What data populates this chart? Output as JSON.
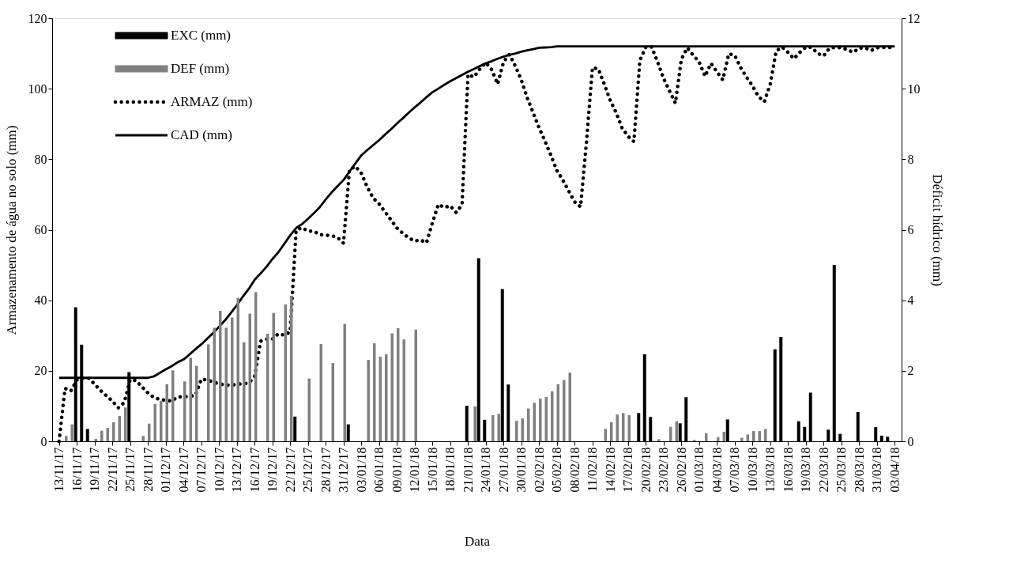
{
  "chart_data": {
    "type": "bar",
    "xlabel": "Data",
    "ylabel": "Armazenamento de água no solo (mm)",
    "y2label": "Déficit hídrico (mm)",
    "categories": [
      "13/11/17",
      null,
      null,
      "16/11/17",
      null,
      null,
      "19/11/17",
      null,
      null,
      "22/11/17",
      null,
      null,
      "25/11/17",
      null,
      null,
      "28/11/17",
      null,
      null,
      "01/12/17",
      null,
      null,
      "04/12/17",
      null,
      null,
      "07/12/17",
      null,
      null,
      "10/12/17",
      null,
      null,
      "13/12/17",
      null,
      null,
      "16/12/17",
      null,
      null,
      "19/12/17",
      null,
      null,
      "22/12/17",
      null,
      null,
      "25/12/17",
      null,
      null,
      "28/12/17",
      null,
      null,
      "31/12/17",
      null,
      null,
      "03/01/18",
      null,
      null,
      "06/01/18",
      null,
      null,
      "09/01/18",
      null,
      null,
      "12/01/18",
      null,
      null,
      "15/01/18",
      null,
      null,
      "18/01/18",
      null,
      null,
      "21/01/18",
      null,
      null,
      "24/01/18",
      null,
      null,
      "27/01/18",
      null,
      null,
      "30/01/18",
      null,
      null,
      "02/02/18",
      null,
      null,
      "05/02/18",
      null,
      null,
      "08/02/18",
      null,
      null,
      "11/02/18",
      null,
      null,
      "14/02/18",
      null,
      null,
      "17/02/18",
      null,
      null,
      "20/02/18",
      null,
      null,
      "23/02/18",
      null,
      null,
      "26/02/18",
      null,
      null,
      "01/03/18",
      null,
      null,
      "04/03/18",
      null,
      null,
      "07/03/18",
      null,
      null,
      "10/03/18",
      null,
      null,
      "13/03/18",
      null,
      null,
      "16/03/18",
      null,
      null,
      "19/03/18",
      null,
      null,
      "22/03/18",
      null,
      null,
      "25/03/18",
      null,
      null,
      "28/03/18",
      null,
      null,
      "31/03/18",
      null,
      null,
      "03/04/18"
    ],
    "ylim": [
      0,
      120
    ],
    "yticks": [
      0,
      20,
      40,
      60,
      80,
      100,
      120
    ],
    "y2lim": [
      0,
      12
    ],
    "y2ticks": [
      0,
      2,
      4,
      6,
      8,
      10,
      12
    ],
    "grid": false,
    "legend": "top left",
    "series": [
      {
        "name": "EXC (mm)",
        "color": "#000000",
        "values": [
          null,
          null,
          null,
          38.0,
          27.4,
          3.5,
          null,
          null,
          null,
          null,
          null,
          null,
          19.6,
          null,
          null,
          null,
          null,
          null,
          null,
          null,
          null,
          null,
          null,
          null,
          null,
          null,
          null,
          null,
          null,
          null,
          null,
          null,
          null,
          null,
          null,
          null,
          null,
          null,
          null,
          null,
          7.0,
          null,
          null,
          null,
          null,
          null,
          null,
          null,
          null,
          4.8,
          null,
          null,
          null,
          null,
          null,
          null,
          null,
          null,
          null,
          null,
          null,
          null,
          null,
          null,
          null,
          null,
          null,
          null,
          null,
          10.1,
          null,
          51.9,
          6.1,
          null,
          null,
          43.2,
          16.1,
          null,
          null,
          null,
          null,
          null,
          null,
          null,
          null,
          null,
          null,
          null,
          null,
          null,
          null,
          null,
          null,
          null,
          null,
          null,
          null,
          null,
          8.0,
          24.7,
          6.9,
          null,
          null,
          null,
          null,
          5.1,
          12.5,
          null,
          null,
          null,
          null,
          null,
          null,
          6.2,
          null,
          null,
          null,
          null,
          null,
          null,
          null,
          26.1,
          29.6,
          null,
          null,
          5.7,
          4.1,
          13.8,
          null,
          null,
          3.3,
          50.0,
          2.1,
          null,
          null,
          8.3,
          null,
          null,
          4.0,
          1.6,
          1.3,
          null
        ]
      },
      {
        "name": "DEF (mm)",
        "axis": "y2",
        "color": "#808080",
        "values": [
          null,
          0.15,
          0.48,
          null,
          null,
          null,
          0.07,
          0.3,
          0.38,
          0.54,
          0.72,
          0.96,
          null,
          null,
          0.15,
          0.5,
          1.06,
          1.15,
          1.62,
          2.01,
          null,
          1.7,
          2.37,
          2.14,
          null,
          2.75,
          3.22,
          3.7,
          3.22,
          3.51,
          4.07,
          2.81,
          3.62,
          4.23,
          null,
          3.05,
          3.64,
          null,
          3.88,
          4.13,
          null,
          null,
          1.78,
          null,
          2.76,
          null,
          2.22,
          null,
          3.33,
          null,
          null,
          null,
          2.31,
          2.78,
          2.4,
          2.47,
          3.06,
          3.21,
          2.89,
          null,
          3.17,
          null,
          null,
          null,
          null,
          null,
          null,
          null,
          null,
          null,
          0.99,
          null,
          null,
          0.74,
          0.78,
          null,
          null,
          0.58,
          0.65,
          0.93,
          1.09,
          1.21,
          1.26,
          1.42,
          1.62,
          1.74,
          1.95,
          null,
          null,
          null,
          null,
          null,
          0.35,
          0.54,
          0.76,
          0.8,
          0.74,
          null,
          null,
          null,
          null,
          0.06,
          null,
          0.41,
          0.57,
          null,
          null,
          0.04,
          null,
          0.23,
          null,
          0.12,
          0.27,
          null,
          null,
          0.1,
          0.19,
          0.29,
          0.29,
          0.35,
          null,
          null,
          null,
          null,
          null,
          null,
          null,
          null,
          null,
          null,
          null,
          null,
          null,
          null,
          null,
          null,
          null,
          null,
          null,
          null,
          null,
          null
        ]
      },
      {
        "name": "ARMAZ (mm)",
        "type": "line",
        "line_style": "dotted",
        "color": "#000000",
        "values": [
          0,
          15.0,
          14.3,
          17.4,
          17.9,
          17.9,
          16.2,
          14.4,
          12.9,
          11.4,
          9.5,
          11.0,
          17.5,
          17.2,
          15.4,
          13.7,
          12.4,
          11.9,
          11.6,
          11.4,
          12.6,
          12.6,
          12.8,
          13.0,
          17.6,
          17.4,
          16.8,
          16.3,
          16.0,
          15.9,
          16.2,
          16.3,
          16.5,
          18.4,
          28.4,
          29.0,
          29.0,
          30.5,
          30.1,
          31.0,
          59.8,
          60.6,
          59.6,
          59.6,
          58.6,
          58.5,
          58.3,
          57.8,
          56.2,
          77.0,
          78.0,
          76.0,
          72.1,
          69.0,
          67.3,
          65.1,
          62.8,
          60.5,
          59.0,
          57.7,
          56.8,
          57.1,
          56.3,
          62.0,
          67.2,
          66.3,
          66.8,
          64.9,
          67.1,
          104.0,
          103.3,
          105.6,
          107.4,
          105.4,
          101.3,
          107.6,
          109.7,
          106.4,
          102.5,
          97.4,
          93.2,
          88.9,
          85.1,
          81.1,
          76.8,
          74.1,
          71.0,
          67.9,
          66.5,
          85.0,
          106.0,
          105.6,
          101.3,
          96.7,
          93.2,
          88.9,
          86.5,
          85.0,
          108.0,
          111.8,
          111.8,
          107.6,
          102.9,
          99.4,
          95.9,
          108.3,
          111.6,
          109.5,
          107.6,
          103.5,
          107.2,
          104.8,
          102.5,
          109.9,
          109.5,
          106.0,
          103.3,
          100.8,
          97.8,
          96.3,
          101.3,
          110.7,
          111.8,
          110.3,
          108.5,
          110.3,
          111.8,
          111.7,
          110.0,
          109.3,
          111.5,
          111.7,
          111.6,
          111.1,
          110.3,
          111.5,
          111.6,
          110.8,
          111.6,
          111.7,
          111.7,
          111.6
        ]
      },
      {
        "name": "CAD (mm)",
        "type": "line",
        "line_style": "solid",
        "color": "#000000",
        "values": [
          18.0,
          18.0,
          18.0,
          18.0,
          18.0,
          18.0,
          18.0,
          18.0,
          18.0,
          18.0,
          18.0,
          18.0,
          18.0,
          18.0,
          18.0,
          18.0,
          18.4,
          19.4,
          20.4,
          21.3,
          22.4,
          23.2,
          24.6,
          26.1,
          27.5,
          29.1,
          30.7,
          32.5,
          34.3,
          36.4,
          38.6,
          41.0,
          43.2,
          45.8,
          47.6,
          49.5,
          51.7,
          53.6,
          56.0,
          58.4,
          60.5,
          61.6,
          63.1,
          64.7,
          66.4,
          68.6,
          70.6,
          72.4,
          74.1,
          76.5,
          78.8,
          81.1,
          82.6,
          84.0,
          85.4,
          87.0,
          88.5,
          90.1,
          91.6,
          93.2,
          94.7,
          96.1,
          97.6,
          99.0,
          100.0,
          101.1,
          102.1,
          103.0,
          103.9,
          104.8,
          105.6,
          106.4,
          107.2,
          107.8,
          108.5,
          109.1,
          109.6,
          110.0,
          110.5,
          110.9,
          111.2,
          111.6,
          111.7,
          111.8,
          112.0,
          112.0,
          112.0,
          112.0,
          112.0,
          112.0,
          112.0,
          112.0,
          112.0,
          112.0,
          112.0,
          112.0,
          112.0,
          112.0,
          112.0,
          112.0,
          112.0,
          112.0,
          112.0,
          112.0,
          112.0,
          112.0,
          112.0,
          112.0,
          112.0,
          112.0,
          112.0,
          112.0,
          112.0,
          112.0,
          112.0,
          112.0,
          112.0,
          112.0,
          112.0,
          112.0,
          112.0,
          112.0,
          112.0,
          112.0,
          112.0,
          112.0,
          112.0,
          112.0,
          112.0,
          112.0,
          112.0,
          112.0,
          112.0,
          112.0,
          112.0,
          112.0,
          112.0,
          112.0,
          112.0,
          112.0,
          112.0,
          112.0
        ]
      }
    ]
  }
}
